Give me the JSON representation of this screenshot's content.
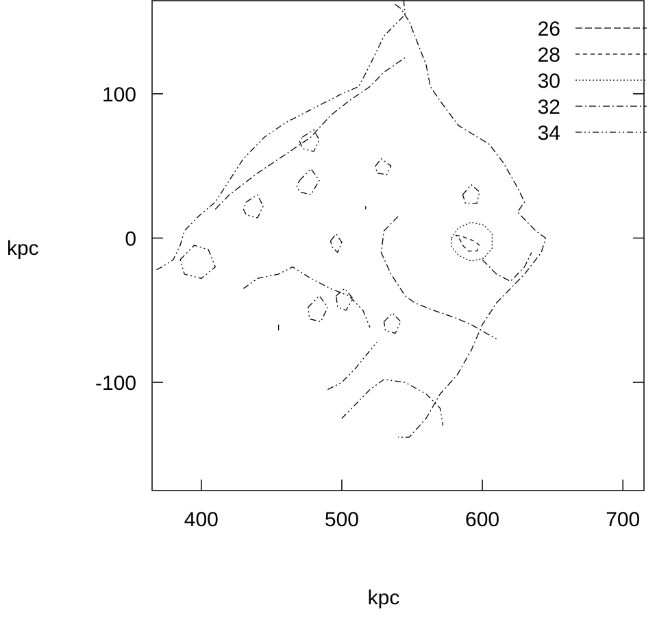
{
  "chart_data": {
    "type": "contour",
    "title": "",
    "xlabel": "kpc",
    "ylabel": "kpc",
    "xlim": [
      365,
      715
    ],
    "ylim": [
      -175,
      165
    ],
    "x_ticks": [
      400,
      500,
      600,
      700
    ],
    "y_ticks": [
      100,
      0,
      -100
    ],
    "grid": false,
    "legend_position": "top-right",
    "series": [
      {
        "name": "26",
        "dash": "long-dash",
        "contours": [
          [
            [
              517,
              22
            ],
            [
              517,
              20
            ]
          ],
          [
            [
              455,
              -60
            ],
            [
              455,
              -64
            ]
          ]
        ]
      },
      {
        "name": "28",
        "dash": "short-dash",
        "contours": [
          [
            [
              581,
              2
            ],
            [
              586,
              1
            ],
            [
              594,
              -2
            ],
            [
              598,
              -5
            ],
            [
              596,
              -9
            ],
            [
              590,
              -9
            ],
            [
              586,
              -5
            ],
            [
              584,
              -1
            ],
            [
              581,
              2
            ]
          ]
        ]
      },
      {
        "name": "30",
        "dash": "dotted",
        "contours": [
          [
            [
              578,
              0
            ],
            [
              583,
              7
            ],
            [
              592,
              11
            ],
            [
              601,
              9
            ],
            [
              607,
              3
            ],
            [
              607,
              -7
            ],
            [
              601,
              -14
            ],
            [
              592,
              -16
            ],
            [
              583,
              -12
            ],
            [
              578,
              -6
            ],
            [
              578,
              0
            ]
          ]
        ]
      },
      {
        "name": "32",
        "dash": "dash-dot",
        "contours": [
          [
            [
              538,
              162
            ],
            [
              542,
              159
            ],
            [
              548,
              150
            ],
            [
              554,
              135
            ],
            [
              560,
              120
            ],
            [
              563,
              105
            ],
            [
              570,
              95
            ],
            [
              583,
              78
            ],
            [
              605,
              65
            ],
            [
              615,
              52
            ],
            [
              625,
              35
            ],
            [
              630,
              25
            ],
            [
              625,
              18
            ],
            [
              638,
              5
            ],
            [
              645,
              0
            ],
            [
              642,
              -10
            ],
            [
              630,
              -25
            ],
            [
              610,
              -45
            ],
            [
              600,
              -60
            ],
            [
              592,
              -78
            ],
            [
              582,
              -95
            ],
            [
              570,
              -108
            ],
            [
              560,
              -125
            ],
            [
              548,
              -138
            ],
            [
              540,
              -138
            ]
          ],
          [
            [
              410,
              20
            ],
            [
              420,
              30
            ],
            [
              440,
              45
            ],
            [
              460,
              58
            ],
            [
              478,
              70
            ],
            [
              492,
              85
            ],
            [
              505,
              95
            ],
            [
              520,
              105
            ],
            [
              530,
              115
            ],
            [
              545,
              125
            ]
          ],
          [
            [
              540,
              15
            ],
            [
              530,
              5
            ],
            [
              528,
              -10
            ],
            [
              535,
              -25
            ],
            [
              545,
              -40
            ],
            [
              552,
              -45
            ],
            [
              565,
              -50
            ],
            [
              580,
              -55
            ],
            [
              592,
              -60
            ],
            [
              610,
              -70
            ]
          ],
          [
            [
              492,
              -2
            ],
            [
              496,
              3
            ],
            [
              500,
              -3
            ],
            [
              497,
              -10
            ],
            [
              493,
              -6
            ],
            [
              492,
              -2
            ]
          ],
          [
            [
              600,
              -15
            ],
            [
              610,
              -25
            ],
            [
              620,
              -30
            ],
            [
              630,
              -20
            ],
            [
              635,
              -10
            ]
          ]
        ]
      },
      {
        "name": "34",
        "dash": "dash-dot-dot",
        "contours": [
          [
            [
              544,
              165
            ],
            [
              545,
              155
            ],
            [
              540,
              150
            ],
            [
              530,
              140
            ],
            [
              520,
              120
            ],
            [
              512,
              105
            ],
            [
              500,
              100
            ],
            [
              480,
              90
            ],
            [
              460,
              80
            ],
            [
              445,
              70
            ],
            [
              430,
              55
            ],
            [
              420,
              40
            ],
            [
              410,
              25
            ],
            [
              398,
              15
            ],
            [
              388,
              5
            ],
            [
              385,
              -5
            ],
            [
              380,
              -15
            ],
            [
              372,
              -20
            ],
            [
              368,
              -22
            ]
          ],
          [
            [
              472,
              70
            ],
            [
              480,
              75
            ],
            [
              484,
              68
            ],
            [
              480,
              60
            ],
            [
              472,
              62
            ],
            [
              470,
              67
            ],
            [
              472,
              70
            ]
          ],
          [
            [
              432,
              25
            ],
            [
              440,
              30
            ],
            [
              444,
              22
            ],
            [
              440,
              14
            ],
            [
              432,
              16
            ],
            [
              430,
              20
            ],
            [
              432,
              25
            ]
          ],
          [
            [
              470,
              40
            ],
            [
              478,
              48
            ],
            [
              484,
              40
            ],
            [
              478,
              30
            ],
            [
              470,
              32
            ],
            [
              468,
              36
            ],
            [
              470,
              40
            ]
          ],
          [
            [
              385,
              -15
            ],
            [
              395,
              -5
            ],
            [
              405,
              -8
            ],
            [
              410,
              -20
            ],
            [
              400,
              -28
            ],
            [
              388,
              -25
            ],
            [
              385,
              -15
            ]
          ],
          [
            [
              524,
              50
            ],
            [
              528,
              55
            ],
            [
              535,
              50
            ],
            [
              532,
              44
            ],
            [
              525,
              45
            ],
            [
              524,
              50
            ]
          ],
          [
            [
              586,
              30
            ],
            [
              592,
              37
            ],
            [
              598,
              32
            ],
            [
              596,
              24
            ],
            [
              588,
              24
            ],
            [
              586,
              30
            ]
          ],
          [
            [
              476,
              -48
            ],
            [
              484,
              -40
            ],
            [
              490,
              -48
            ],
            [
              485,
              -58
            ],
            [
              477,
              -56
            ],
            [
              476,
              -48
            ]
          ],
          [
            [
              496,
              -40
            ],
            [
              502,
              -35
            ],
            [
              508,
              -42
            ],
            [
              503,
              -50
            ],
            [
              497,
              -48
            ],
            [
              496,
              -40
            ]
          ],
          [
            [
              530,
              -58
            ],
            [
              536,
              -52
            ],
            [
              542,
              -58
            ],
            [
              538,
              -66
            ],
            [
              531,
              -64
            ],
            [
              530,
              -58
            ]
          ],
          [
            [
              430,
              -35
            ],
            [
              440,
              -28
            ],
            [
              455,
              -25
            ],
            [
              465,
              -20
            ],
            [
              478,
              -28
            ],
            [
              492,
              -35
            ],
            [
              505,
              -40
            ],
            [
              515,
              -50
            ],
            [
              520,
              -62
            ]
          ],
          [
            [
              490,
              -105
            ],
            [
              500,
              -100
            ],
            [
              510,
              -90
            ],
            [
              520,
              -78
            ],
            [
              525,
              -72
            ]
          ],
          [
            [
              500,
              -125
            ],
            [
              510,
              -115
            ],
            [
              520,
              -105
            ],
            [
              530,
              -98
            ],
            [
              545,
              -100
            ],
            [
              560,
              -108
            ],
            [
              570,
              -118
            ],
            [
              572,
              -130
            ]
          ]
        ]
      }
    ]
  }
}
